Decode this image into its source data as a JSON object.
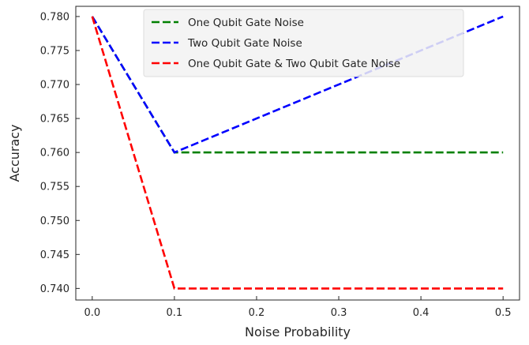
{
  "chart_data": {
    "type": "line",
    "title": "",
    "xlabel": "Noise Probability",
    "ylabel": "Accuracy",
    "x": [
      0.0,
      0.1,
      0.5
    ],
    "xlim": [
      -0.02,
      0.52
    ],
    "ylim": [
      0.7383,
      0.7815
    ],
    "xticks": [
      0.0,
      0.1,
      0.2,
      0.3,
      0.4,
      0.5
    ],
    "xtick_labels": [
      "0.0",
      "0.1",
      "0.2",
      "0.3",
      "0.4",
      "0.5"
    ],
    "yticks": [
      0.74,
      0.745,
      0.75,
      0.755,
      0.76,
      0.765,
      0.77,
      0.775,
      0.78
    ],
    "ytick_labels": [
      "0.740",
      "0.745",
      "0.750",
      "0.755",
      "0.760",
      "0.765",
      "0.770",
      "0.775",
      "0.780"
    ],
    "grid": false,
    "legend_position": "top-center",
    "line_style": "dashed",
    "series": [
      {
        "name": "One Qubit Gate Noise",
        "values": [
          0.78,
          0.76,
          0.76
        ],
        "color": "#008000"
      },
      {
        "name": "Two Qubit Gate Noise",
        "values": [
          0.78,
          0.76,
          0.78
        ],
        "color": "#0000ff"
      },
      {
        "name": "One Qubit Gate & Two Qubit Gate Noise",
        "values": [
          0.78,
          0.74,
          0.74
        ],
        "color": "#ff0000"
      }
    ]
  }
}
